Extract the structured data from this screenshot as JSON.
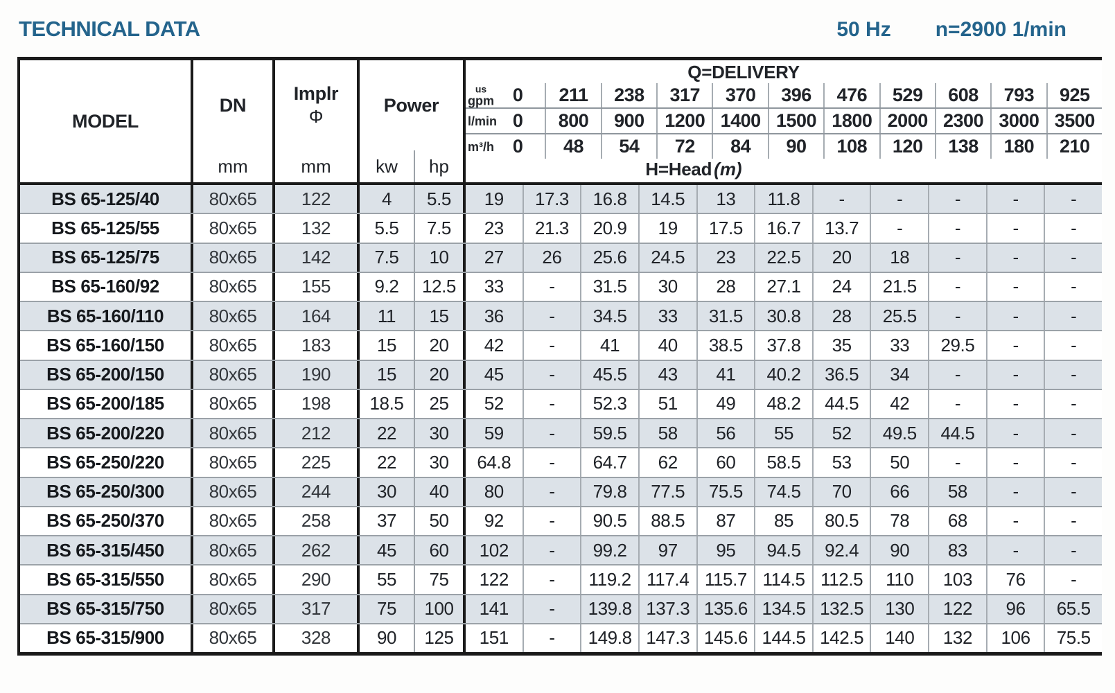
{
  "page": {
    "title": "TECHNICAL DATA",
    "frequency": "50 Hz",
    "speed": "n=2900 1/min"
  },
  "colors": {
    "accent": "#24648c",
    "row_shade": "#dce2e8",
    "border_dark": "#1a1a1a",
    "grid_gray": "#9ba2a8"
  },
  "table": {
    "header": {
      "model": "MODEL",
      "dn": "DN",
      "dn_unit": "mm",
      "impeller": "Implr",
      "impeller_symbol": "Φ",
      "impeller_unit": "mm",
      "power": "Power",
      "power_kw": "kw",
      "power_hp": "hp",
      "delivery_title": "Q=DELIVERY",
      "head_label": "H=Head",
      "head_unit": "(m)",
      "units": [
        {
          "label_top": "us",
          "label": "gpm",
          "values": [
            "0",
            "211",
            "238",
            "317",
            "370",
            "396",
            "476",
            "529",
            "608",
            "793",
            "925"
          ]
        },
        {
          "label_top": "",
          "label": "l/min",
          "values": [
            "0",
            "800",
            "900",
            "1200",
            "1400",
            "1500",
            "1800",
            "2000",
            "2300",
            "3000",
            "3500"
          ]
        },
        {
          "label_top": "",
          "label": "m³/h",
          "values": [
            "0",
            "48",
            "54",
            "72",
            "84",
            "90",
            "108",
            "120",
            "138",
            "180",
            "210"
          ]
        }
      ]
    },
    "rows": [
      {
        "model": "BS 65-125/40",
        "dn": "80x65",
        "impeller": "122",
        "kw": "4",
        "hp": "5.5",
        "head": [
          "19",
          "17.3",
          "16.8",
          "14.5",
          "13",
          "11.8",
          "-",
          "-",
          "-",
          "-",
          "-"
        ]
      },
      {
        "model": "BS 65-125/55",
        "dn": "80x65",
        "impeller": "132",
        "kw": "5.5",
        "hp": "7.5",
        "head": [
          "23",
          "21.3",
          "20.9",
          "19",
          "17.5",
          "16.7",
          "13.7",
          "-",
          "-",
          "-",
          "-"
        ]
      },
      {
        "model": "BS 65-125/75",
        "dn": "80x65",
        "impeller": "142",
        "kw": "7.5",
        "hp": "10",
        "head": [
          "27",
          "26",
          "25.6",
          "24.5",
          "23",
          "22.5",
          "20",
          "18",
          "-",
          "-",
          "-"
        ]
      },
      {
        "model": "BS 65-160/92",
        "dn": "80x65",
        "impeller": "155",
        "kw": "9.2",
        "hp": "12.5",
        "head": [
          "33",
          "-",
          "31.5",
          "30",
          "28",
          "27.1",
          "24",
          "21.5",
          "-",
          "-",
          "-"
        ]
      },
      {
        "model": "BS 65-160/110",
        "dn": "80x65",
        "impeller": "164",
        "kw": "11",
        "hp": "15",
        "head": [
          "36",
          "-",
          "34.5",
          "33",
          "31.5",
          "30.8",
          "28",
          "25.5",
          "-",
          "-",
          "-"
        ]
      },
      {
        "model": "BS 65-160/150",
        "dn": "80x65",
        "impeller": "183",
        "kw": "15",
        "hp": "20",
        "head": [
          "42",
          "-",
          "41",
          "40",
          "38.5",
          "37.8",
          "35",
          "33",
          "29.5",
          "-",
          "-"
        ]
      },
      {
        "model": "BS 65-200/150",
        "dn": "80x65",
        "impeller": "190",
        "kw": "15",
        "hp": "20",
        "head": [
          "45",
          "-",
          "45.5",
          "43",
          "41",
          "40.2",
          "36.5",
          "34",
          "-",
          "-",
          "-"
        ]
      },
      {
        "model": "BS 65-200/185",
        "dn": "80x65",
        "impeller": "198",
        "kw": "18.5",
        "hp": "25",
        "head": [
          "52",
          "-",
          "52.3",
          "51",
          "49",
          "48.2",
          "44.5",
          "42",
          "-",
          "-",
          "-"
        ]
      },
      {
        "model": "BS 65-200/220",
        "dn": "80x65",
        "impeller": "212",
        "kw": "22",
        "hp": "30",
        "head": [
          "59",
          "-",
          "59.5",
          "58",
          "56",
          "55",
          "52",
          "49.5",
          "44.5",
          "-",
          "-"
        ]
      },
      {
        "model": "BS 65-250/220",
        "dn": "80x65",
        "impeller": "225",
        "kw": "22",
        "hp": "30",
        "head": [
          "64.8",
          "-",
          "64.7",
          "62",
          "60",
          "58.5",
          "53",
          "50",
          "-",
          "-",
          "-"
        ]
      },
      {
        "model": "BS 65-250/300",
        "dn": "80x65",
        "impeller": "244",
        "kw": "30",
        "hp": "40",
        "head": [
          "80",
          "-",
          "79.8",
          "77.5",
          "75.5",
          "74.5",
          "70",
          "66",
          "58",
          "-",
          "-"
        ]
      },
      {
        "model": "BS 65-250/370",
        "dn": "80x65",
        "impeller": "258",
        "kw": "37",
        "hp": "50",
        "head": [
          "92",
          "-",
          "90.5",
          "88.5",
          "87",
          "85",
          "80.5",
          "78",
          "68",
          "-",
          "-"
        ]
      },
      {
        "model": "BS 65-315/450",
        "dn": "80x65",
        "impeller": "262",
        "kw": "45",
        "hp": "60",
        "head": [
          "102",
          "-",
          "99.2",
          "97",
          "95",
          "94.5",
          "92.4",
          "90",
          "83",
          "-",
          "-"
        ]
      },
      {
        "model": "BS 65-315/550",
        "dn": "80x65",
        "impeller": "290",
        "kw": "55",
        "hp": "75",
        "head": [
          "122",
          "-",
          "119.2",
          "117.4",
          "115.7",
          "114.5",
          "112.5",
          "110",
          "103",
          "76",
          "-"
        ]
      },
      {
        "model": "BS 65-315/750",
        "dn": "80x65",
        "impeller": "317",
        "kw": "75",
        "hp": "100",
        "head": [
          "141",
          "-",
          "139.8",
          "137.3",
          "135.6",
          "134.5",
          "132.5",
          "130",
          "122",
          "96",
          "65.5"
        ]
      },
      {
        "model": "BS 65-315/900",
        "dn": "80x65",
        "impeller": "328",
        "kw": "90",
        "hp": "125",
        "head": [
          "151",
          "-",
          "149.8",
          "147.3",
          "145.6",
          "144.5",
          "142.5",
          "140",
          "132",
          "106",
          "75.5"
        ]
      }
    ]
  }
}
